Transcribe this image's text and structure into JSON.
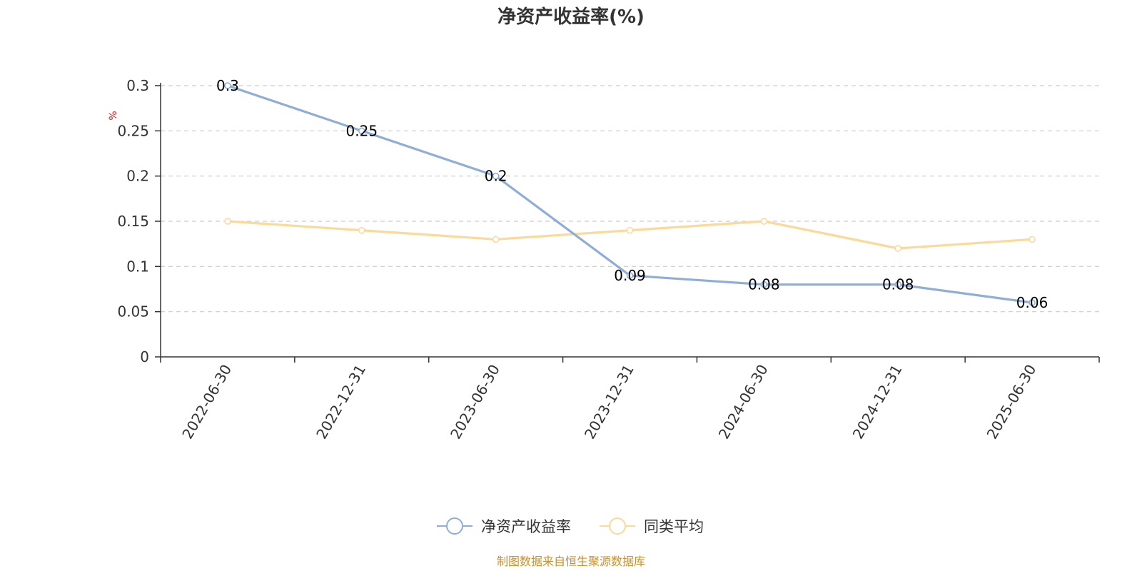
{
  "chart_data": {
    "type": "line",
    "title": "净资产收益率(%)",
    "ylabel": "%",
    "categories": [
      "2022-06-30",
      "2022-12-31",
      "2023-06-30",
      "2023-12-31",
      "2024-06-30",
      "2024-12-31",
      "2025-06-30"
    ],
    "ylim": [
      0,
      0.3
    ],
    "yticks": [
      "0",
      "0.05",
      "0.1",
      "0.15",
      "0.2",
      "0.25",
      "0.3"
    ],
    "grid": true,
    "legend_position": "bottom",
    "series": [
      {
        "name": "净资产收益率",
        "color": "#8eaed8",
        "values": [
          0.3,
          0.25,
          0.2,
          0.09,
          0.08,
          0.08,
          0.06
        ],
        "labels": [
          "0.3",
          "0.25",
          "0.2",
          "0.09",
          "0.08",
          "0.08",
          "0.06"
        ],
        "show_labels": true
      },
      {
        "name": "同类平均",
        "color": "#fbd999",
        "values": [
          0.15,
          0.14,
          0.13,
          0.14,
          0.15,
          0.12,
          0.13
        ],
        "show_labels": false
      }
    ],
    "source_note": "制图数据来自恒生聚源数据库"
  }
}
